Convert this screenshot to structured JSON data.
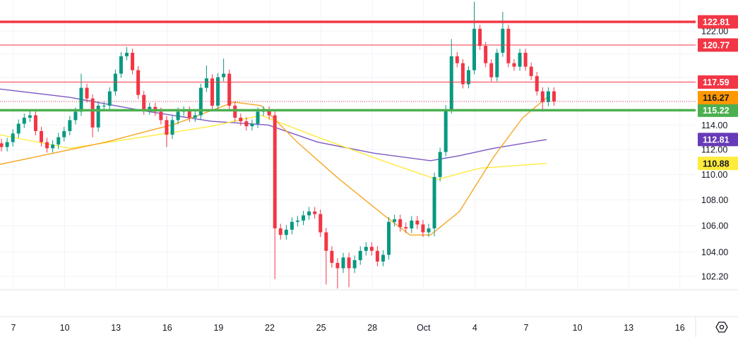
{
  "chart_data": {
    "type": "candlestick",
    "scale": "log",
    "colors": {
      "up": "#089981",
      "down": "#f23645",
      "grid": "#f0f3fa"
    },
    "y_ticks": [
      {
        "label": "122.00",
        "value": 122.0
      },
      {
        "label": "114.00",
        "value": 114.0
      },
      {
        "label": "112.00",
        "value": 112.0
      },
      {
        "label": "110.00",
        "value": 110.0
      },
      {
        "label": "108.00",
        "value": 108.0
      },
      {
        "label": "106.00",
        "value": 106.0
      },
      {
        "label": "104.00",
        "value": 104.0
      },
      {
        "label": "102.20",
        "value": 102.2
      }
    ],
    "hidden_grid_values": [
      120,
      118,
      116
    ],
    "x_ticks": [
      {
        "label": "7",
        "day": 7
      },
      {
        "label": "10",
        "day": 10
      },
      {
        "label": "13",
        "day": 13
      },
      {
        "label": "16",
        "day": 16
      },
      {
        "label": "19",
        "day": 19
      },
      {
        "label": "22",
        "day": 22
      },
      {
        "label": "25",
        "day": 25
      },
      {
        "label": "28",
        "day": 28
      },
      {
        "label": "Oct",
        "day": 31
      },
      {
        "label": "4",
        "day": 34
      },
      {
        "label": "7",
        "day": 37
      },
      {
        "label": "10",
        "day": 40
      },
      {
        "label": "13",
        "day": 43
      },
      {
        "label": "16",
        "day": 46
      }
    ],
    "candles": {
      "start_day": 6.3,
      "step_days": 0.3333,
      "first_open": 112.5,
      "default_wick": 0.35,
      "closes": [
        112.2,
        112.6,
        113.3,
        114.1,
        114.6,
        114.8,
        113.5,
        112.6,
        112.1,
        112.4,
        113.0,
        113.5,
        114.4,
        115.1,
        117.1,
        116.2,
        113.8,
        115.6,
        115.6,
        116.8,
        118.3,
        119.8,
        120.1,
        118.6,
        116.5,
        115.2,
        115.5,
        115.1,
        114.4,
        113.2,
        114.4,
        115.1,
        115.2,
        114.6,
        114.8,
        117.1,
        117.9,
        115.6,
        118.0,
        118.3,
        115.6,
        114.6,
        114.3,
        113.9,
        114.1,
        115.1,
        115.2,
        114.8,
        105.8,
        105.3,
        105.7,
        106.3,
        106.4,
        106.8,
        107.1,
        106.9,
        105.5,
        104.1,
        103.2,
        102.8,
        103.6,
        102.8,
        103.4,
        104.1,
        104.4,
        104.1,
        103.3,
        103.8,
        106.3,
        106.5,
        105.9,
        105.8,
        106.4,
        106.1,
        105.5,
        105.8,
        109.8,
        111.8,
        115.3,
        119.8,
        119.2,
        117.4,
        118.6,
        122.2,
        120.7,
        119.2,
        118.0,
        120.1,
        122.2,
        119.2,
        118.9,
        120.1,
        118.9,
        118.1,
        116.8,
        115.9,
        116.8,
        115.95
      ],
      "overrides": [
        {
          "i": 14,
          "high": 118.3
        },
        {
          "i": 16,
          "low": 113.0
        },
        {
          "i": 22,
          "high": 120.6
        },
        {
          "i": 29,
          "low": 112.2
        },
        {
          "i": 36,
          "high": 119.0
        },
        {
          "i": 39,
          "high": 119.6
        },
        {
          "i": 48,
          "low": 102.0
        },
        {
          "i": 57,
          "low": 101.6
        },
        {
          "i": 59,
          "low": 101.3
        },
        {
          "i": 61,
          "low": 101.4
        },
        {
          "i": 76,
          "low": 105.2
        },
        {
          "i": 79,
          "high": 121.3
        },
        {
          "i": 83,
          "high": 124.6
        },
        {
          "i": 88,
          "high": 123.7
        },
        {
          "i": 95,
          "low": 115.1
        }
      ]
    },
    "moving_averages": [
      {
        "name": "purple-ma",
        "color": "#7e57c2",
        "label": "112.81",
        "label_bg": "#673ab7",
        "label_fg": "#ffffff",
        "points": [
          [
            6.2,
            117.0
          ],
          [
            10.3,
            116.3
          ],
          [
            14.5,
            115.2
          ],
          [
            18.6,
            114.3
          ],
          [
            21.9,
            114.0
          ],
          [
            24.8,
            112.6
          ],
          [
            28.1,
            111.7
          ],
          [
            31.4,
            111.1
          ],
          [
            33.1,
            111.5
          ],
          [
            35.1,
            112.1
          ],
          [
            38.2,
            112.81
          ]
        ]
      },
      {
        "name": "yellow-ma",
        "color": "#ffeb3b",
        "label": "110.88",
        "label_bg": "#ffeb3b",
        "label_fg": "#131722",
        "points": [
          [
            6.2,
            113.2
          ],
          [
            10.3,
            112.1
          ],
          [
            14.5,
            113.0
          ],
          [
            18.6,
            113.9
          ],
          [
            21.5,
            114.8
          ],
          [
            24.8,
            113.0
          ],
          [
            29.0,
            110.9
          ],
          [
            31.8,
            109.6
          ],
          [
            34.3,
            110.5
          ],
          [
            38.2,
            110.88
          ]
        ]
      },
      {
        "name": "orange-ma",
        "color": "#f5a623",
        "label": "116.27",
        "label_bg": "#ff9800",
        "label_fg": "#131722",
        "points": [
          [
            6.2,
            110.8
          ],
          [
            8.3,
            111.4
          ],
          [
            12.4,
            112.6
          ],
          [
            16.5,
            114.1
          ],
          [
            19.9,
            115.9
          ],
          [
            21.5,
            115.6
          ],
          [
            23.6,
            112.6
          ],
          [
            26.0,
            109.7
          ],
          [
            28.5,
            107.0
          ],
          [
            30.2,
            105.3
          ],
          [
            31.4,
            105.3
          ],
          [
            33.1,
            107.1
          ],
          [
            35.1,
            111.4
          ],
          [
            36.8,
            114.6
          ],
          [
            38.2,
            116.27
          ]
        ]
      }
    ],
    "levels": [
      {
        "name": "resistance-122-81",
        "value": 122.81,
        "label": "122.81",
        "color": "#f23645",
        "width": 3.5
      },
      {
        "name": "resistance-120-77",
        "value": 120.77,
        "label": "120.77",
        "color": "#f23645",
        "width": 1
      },
      {
        "name": "resistance-117-59",
        "value": 117.59,
        "label": "117.59",
        "color": "#f23645",
        "width": 1
      },
      {
        "name": "support-115-22",
        "value": 115.22,
        "label": "115.22",
        "color": "#4caf50",
        "width": 3.5
      }
    ],
    "current_price_line": {
      "value": 115.95,
      "color": "#f23645"
    }
  }
}
